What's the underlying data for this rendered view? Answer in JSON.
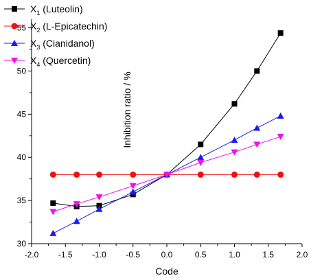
{
  "chart_data": {
    "type": "line",
    "title": "",
    "xlabel": "Code",
    "ylabel": "Inhibition ratio / %",
    "xlim": [
      -2.0,
      2.0
    ],
    "ylim": [
      30,
      56
    ],
    "x_ticks": [
      -2.0,
      -1.5,
      -1.0,
      -0.5,
      0.0,
      0.5,
      1.0,
      1.5,
      2.0
    ],
    "x_tick_labels": [
      "-2.0",
      "-1.5",
      "-1.0",
      "-0.5",
      "0.0",
      "0.5",
      "1.0",
      "1.5",
      "2.0"
    ],
    "y_ticks": [
      30,
      35,
      40,
      45,
      50,
      55
    ],
    "y_tick_labels": [
      "30",
      "35",
      "40",
      "45",
      "50",
      "55"
    ],
    "legend_position": "top-left",
    "grid": false,
    "x": [
      -1.682,
      -1.333,
      -1.0,
      -0.5,
      0.0,
      0.5,
      1.0,
      1.333,
      1.682
    ],
    "series": [
      {
        "name": "X1 (Luteolin)",
        "label_main": "X",
        "label_sub": "1",
        "label_rest": " (Luteolin)",
        "color": "#000000",
        "marker": "square",
        "values": [
          34.7,
          34.3,
          34.4,
          35.7,
          38.0,
          41.5,
          46.2,
          50.0,
          54.4
        ]
      },
      {
        "name": "X2 (L-Epicatechin)",
        "label_main": "X",
        "label_sub": "2",
        "label_rest": " (L-Epicatechin)",
        "color": "#ee1111",
        "marker": "circle",
        "values": [
          38.0,
          38.0,
          38.0,
          38.0,
          38.0,
          38.0,
          38.0,
          38.0,
          38.0
        ]
      },
      {
        "name": "X3 (Cianidanol)",
        "label_main": "X",
        "label_sub": "3",
        "label_rest": " (Cianidanol)",
        "color": "#1a1aee",
        "marker": "triangle-up",
        "values": [
          31.2,
          32.6,
          34.0,
          36.0,
          38.0,
          40.0,
          42.0,
          43.4,
          44.8
        ]
      },
      {
        "name": "X4 (Quercetin)",
        "label_main": "X",
        "label_sub": "4",
        "label_rest": " (Quercetin)",
        "color": "#ee11ee",
        "marker": "triangle-down",
        "values": [
          33.7,
          34.6,
          35.4,
          36.7,
          38.0,
          39.4,
          40.6,
          41.5,
          42.4
        ]
      }
    ]
  }
}
